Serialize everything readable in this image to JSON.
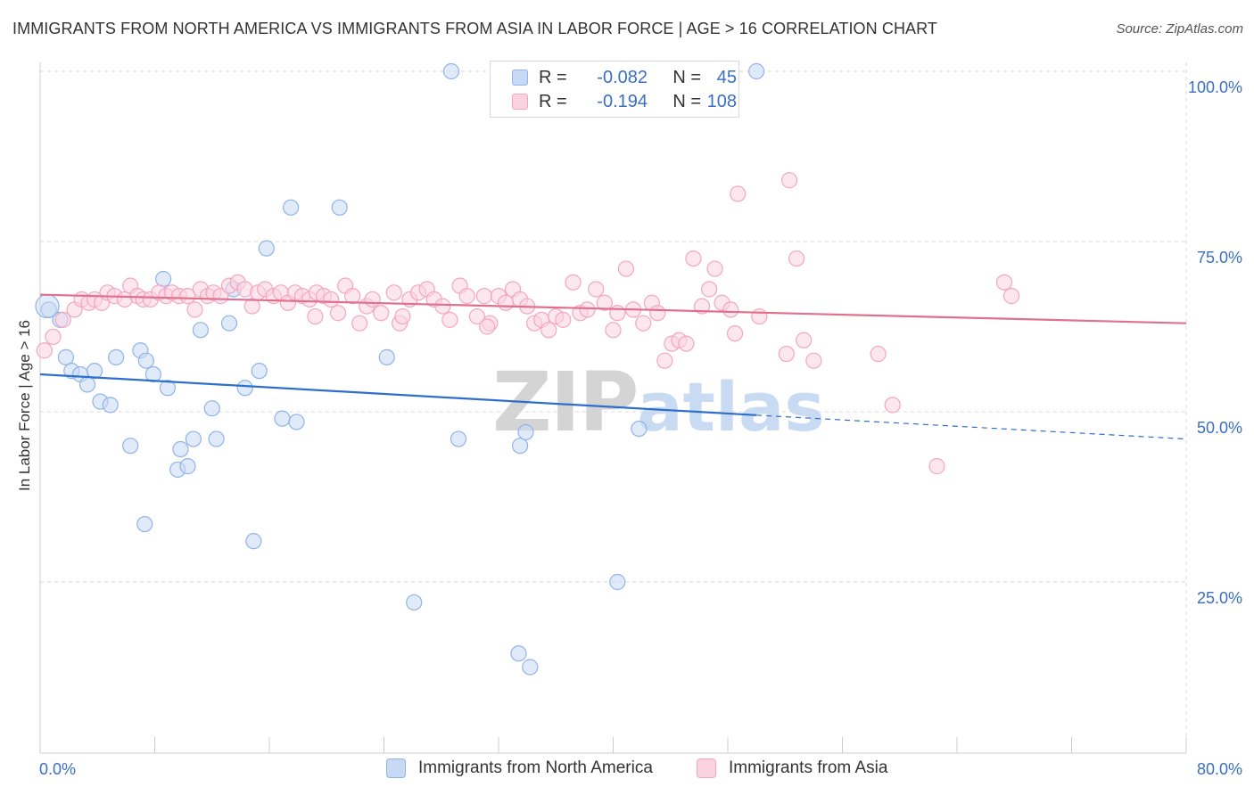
{
  "header": {
    "title": "IMMIGRANTS FROM NORTH AMERICA VS IMMIGRANTS FROM ASIA IN LABOR FORCE | AGE > 16 CORRELATION CHART",
    "source": "Source: ZipAtlas.com"
  },
  "legend": {
    "rows": [
      {
        "r_label": "R =",
        "r_value": "-0.082",
        "n_label": "N =",
        "n_value": "45"
      },
      {
        "r_label": "R =",
        "r_value": "-0.194",
        "n_label": "N =",
        "n_value": "108"
      }
    ]
  },
  "watermark": {
    "part1": "ZIP",
    "part2": "atlas"
  },
  "chart_data": {
    "type": "scatter",
    "title": "IMMIGRANTS FROM NORTH AMERICA VS IMMIGRANTS FROM ASIA IN LABOR FORCE | AGE > 16 CORRELATION CHART",
    "xlabel": "",
    "ylabel": "In Labor Force | Age > 16",
    "xlim": [
      0,
      80
    ],
    "ylim": [
      0,
      105
    ],
    "x_tick_labels": {
      "min": "0.0%",
      "max": "80.0%"
    },
    "y_ticks": [
      {
        "value": 100,
        "label": "100.0%"
      },
      {
        "value": 75,
        "label": "75.0%"
      },
      {
        "value": 50,
        "label": "50.0%"
      },
      {
        "value": 25,
        "label": "25.0%"
      }
    ],
    "grid": true,
    "legend_position": "top-center",
    "series": [
      {
        "name": "Immigrants from North America",
        "color": "#8fb4e8",
        "line_color": "#2e6fcc",
        "r": -0.082,
        "n": 45,
        "trend": {
          "x0": 0,
          "y0": 55.5,
          "x1": 50,
          "y1": 49.5,
          "x_dash_end": 80,
          "y_dash_end": 46.0
        },
        "points": [
          [
            0.6,
            65.0
          ],
          [
            1.4,
            63.5
          ],
          [
            1.8,
            58.0
          ],
          [
            2.2,
            56.0
          ],
          [
            2.8,
            55.5
          ],
          [
            3.3,
            54.0
          ],
          [
            3.8,
            56.0
          ],
          [
            4.2,
            51.5
          ],
          [
            4.9,
            51.0
          ],
          [
            5.3,
            58.0
          ],
          [
            6.3,
            45.0
          ],
          [
            7.0,
            59.0
          ],
          [
            7.4,
            57.5
          ],
          [
            7.9,
            55.5
          ],
          [
            8.6,
            69.5
          ],
          [
            8.9,
            53.5
          ],
          [
            9.6,
            41.5
          ],
          [
            9.8,
            44.5
          ],
          [
            10.3,
            42.0
          ],
          [
            10.7,
            46.0
          ],
          [
            11.2,
            62.0
          ],
          [
            12.0,
            50.5
          ],
          [
            12.3,
            46.0
          ],
          [
            13.2,
            63.0
          ],
          [
            13.5,
            68.0
          ],
          [
            14.3,
            53.5
          ],
          [
            15.3,
            56.0
          ],
          [
            15.8,
            74.0
          ],
          [
            16.9,
            49.0
          ],
          [
            17.5,
            80.0
          ],
          [
            17.9,
            48.5
          ],
          [
            20.9,
            80.0
          ],
          [
            24.2,
            58.0
          ],
          [
            26.1,
            22.0
          ],
          [
            28.7,
            100.0
          ],
          [
            29.2,
            46.0
          ],
          [
            33.4,
            14.5
          ],
          [
            34.2,
            12.5
          ],
          [
            33.5,
            45.0
          ],
          [
            33.9,
            47.0
          ],
          [
            40.3,
            25.0
          ],
          [
            41.8,
            47.5
          ],
          [
            50.0,
            100.0
          ],
          [
            7.3,
            33.5
          ],
          [
            14.9,
            31.0
          ]
        ]
      },
      {
        "name": "Immigrants from Asia",
        "color": "#f4a6bf",
        "line_color": "#e0708f",
        "r": -0.194,
        "n": 108,
        "trend": {
          "x0": 0,
          "y0": 67.2,
          "x1": 80,
          "y1": 63.0
        },
        "points": [
          [
            0.3,
            59.0
          ],
          [
            0.9,
            61.0
          ],
          [
            1.6,
            63.5
          ],
          [
            2.4,
            65.0
          ],
          [
            2.9,
            66.5
          ],
          [
            3.4,
            66.0
          ],
          [
            3.8,
            66.5
          ],
          [
            4.3,
            66.0
          ],
          [
            4.7,
            67.5
          ],
          [
            5.2,
            67.0
          ],
          [
            5.9,
            66.5
          ],
          [
            6.3,
            68.5
          ],
          [
            6.8,
            67.0
          ],
          [
            7.2,
            66.5
          ],
          [
            7.7,
            66.5
          ],
          [
            8.3,
            67.5
          ],
          [
            8.8,
            67.0
          ],
          [
            9.2,
            67.5
          ],
          [
            9.7,
            67.0
          ],
          [
            10.3,
            67.0
          ],
          [
            10.8,
            65.0
          ],
          [
            11.2,
            68.0
          ],
          [
            11.7,
            67.0
          ],
          [
            12.1,
            67.5
          ],
          [
            12.6,
            67.0
          ],
          [
            13.2,
            68.5
          ],
          [
            13.8,
            69.0
          ],
          [
            14.3,
            68.0
          ],
          [
            14.8,
            65.5
          ],
          [
            15.2,
            67.5
          ],
          [
            15.7,
            68.0
          ],
          [
            16.3,
            67.0
          ],
          [
            16.8,
            67.5
          ],
          [
            17.3,
            66.0
          ],
          [
            17.8,
            67.5
          ],
          [
            18.3,
            67.0
          ],
          [
            18.8,
            66.5
          ],
          [
            19.3,
            67.5
          ],
          [
            19.8,
            67.0
          ],
          [
            20.3,
            66.5
          ],
          [
            20.8,
            64.5
          ],
          [
            21.3,
            68.5
          ],
          [
            21.8,
            67.0
          ],
          [
            22.3,
            63.0
          ],
          [
            22.8,
            65.5
          ],
          [
            23.2,
            66.5
          ],
          [
            23.8,
            64.5
          ],
          [
            24.7,
            67.5
          ],
          [
            25.1,
            63.0
          ],
          [
            25.8,
            66.5
          ],
          [
            26.4,
            67.5
          ],
          [
            27.0,
            68.0
          ],
          [
            27.5,
            66.5
          ],
          [
            28.1,
            65.5
          ],
          [
            28.6,
            63.5
          ],
          [
            29.3,
            68.5
          ],
          [
            29.8,
            67.0
          ],
          [
            30.5,
            64.0
          ],
          [
            31.0,
            67.0
          ],
          [
            31.4,
            63.0
          ],
          [
            32.0,
            67.0
          ],
          [
            32.5,
            66.0
          ],
          [
            33.0,
            68.0
          ],
          [
            33.5,
            66.5
          ],
          [
            34.0,
            65.5
          ],
          [
            34.5,
            63.0
          ],
          [
            35.0,
            63.5
          ],
          [
            35.5,
            62.0
          ],
          [
            36.0,
            64.0
          ],
          [
            36.5,
            63.5
          ],
          [
            37.2,
            69.0
          ],
          [
            37.7,
            64.5
          ],
          [
            38.2,
            65.0
          ],
          [
            38.8,
            68.0
          ],
          [
            39.4,
            66.0
          ],
          [
            40.0,
            62.0
          ],
          [
            40.3,
            64.5
          ],
          [
            40.9,
            71.0
          ],
          [
            41.4,
            65.0
          ],
          [
            42.1,
            63.0
          ],
          [
            42.7,
            66.0
          ],
          [
            43.1,
            64.5
          ],
          [
            43.6,
            57.5
          ],
          [
            44.1,
            60.0
          ],
          [
            44.6,
            60.5
          ],
          [
            45.1,
            60.0
          ],
          [
            45.6,
            72.5
          ],
          [
            46.2,
            65.5
          ],
          [
            46.7,
            68.0
          ],
          [
            47.1,
            71.0
          ],
          [
            47.6,
            66.0
          ],
          [
            48.2,
            65.0
          ],
          [
            48.5,
            61.5
          ],
          [
            48.7,
            82.0
          ],
          [
            50.2,
            64.0
          ],
          [
            52.3,
            84.0
          ],
          [
            52.8,
            72.5
          ],
          [
            52.1,
            58.5
          ],
          [
            53.3,
            60.5
          ],
          [
            54.0,
            57.5
          ],
          [
            58.5,
            58.5
          ],
          [
            59.5,
            51.0
          ],
          [
            62.6,
            42.0
          ],
          [
            67.3,
            69.0
          ],
          [
            67.8,
            67.0
          ],
          [
            31.2,
            62.5
          ],
          [
            25.3,
            64.0
          ],
          [
            19.2,
            64.0
          ]
        ]
      }
    ]
  },
  "bottom_legend": {
    "items": [
      {
        "label": "Immigrants from North America",
        "fill": "#c7d9f4",
        "stroke": "#8fb4e8"
      },
      {
        "label": "Immigrants from Asia",
        "fill": "#fbd3e0",
        "stroke": "#f4a6bf"
      }
    ]
  }
}
